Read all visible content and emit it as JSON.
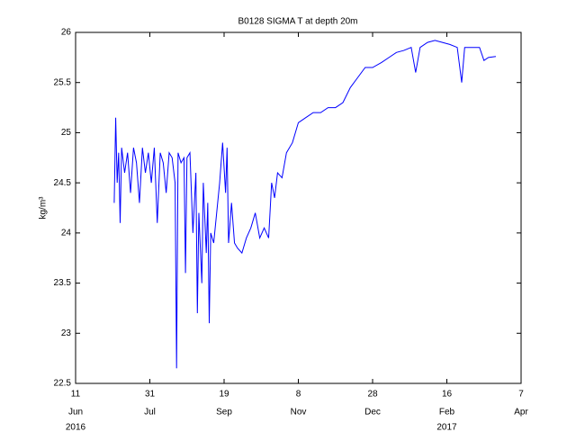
{
  "chart_data": {
    "type": "line",
    "title": "B0128 SIGMA T at depth 20m",
    "ylabel": "kg/m³",
    "xlim": [
      "2016-06-11",
      "2017-04-07"
    ],
    "xticks": [
      {
        "value": "2016-06-11",
        "label": "11"
      },
      {
        "value": "2016-07-31",
        "label": "31"
      },
      {
        "value": "2016-09-19",
        "label": "19"
      },
      {
        "value": "2016-11-08",
        "label": "8"
      },
      {
        "value": "2016-12-28",
        "label": "28"
      },
      {
        "value": "2017-02-16",
        "label": "16"
      },
      {
        "value": "2017-04-07",
        "label": "7"
      }
    ],
    "xtick_months": [
      "Jun",
      "Jul",
      "Sep",
      "Nov",
      "Dec",
      "Feb",
      "Apr"
    ],
    "xtick_years": [
      {
        "value": "2016-06-11",
        "label": "2016"
      },
      {
        "value": "2017-02-16",
        "label": "2017"
      }
    ],
    "ylim": [
      22.5,
      26
    ],
    "yticks": [
      22.5,
      23,
      23.5,
      24,
      24.5,
      25,
      25.5,
      26
    ],
    "grid": false,
    "x": [
      "2016-07-07",
      "2016-07-08",
      "2016-07-09",
      "2016-07-10",
      "2016-07-11",
      "2016-07-12",
      "2016-07-14",
      "2016-07-16",
      "2016-07-18",
      "2016-07-20",
      "2016-07-22",
      "2016-07-24",
      "2016-07-26",
      "2016-07-28",
      "2016-07-30",
      "2016-08-01",
      "2016-08-03",
      "2016-08-05",
      "2016-08-07",
      "2016-08-09",
      "2016-08-11",
      "2016-08-13",
      "2016-08-15",
      "2016-08-17",
      "2016-08-18",
      "2016-08-19",
      "2016-08-21",
      "2016-08-23",
      "2016-08-24",
      "2016-08-25",
      "2016-08-27",
      "2016-08-29",
      "2016-08-31",
      "2016-09-01",
      "2016-09-02",
      "2016-09-04",
      "2016-09-05",
      "2016-09-07",
      "2016-09-08",
      "2016-09-09",
      "2016-09-10",
      "2016-09-12",
      "2016-09-14",
      "2016-09-16",
      "2016-09-18",
      "2016-09-20",
      "2016-09-21",
      "2016-09-22",
      "2016-09-24",
      "2016-09-26",
      "2016-09-28",
      "2016-10-01",
      "2016-10-04",
      "2016-10-07",
      "2016-10-10",
      "2016-10-13",
      "2016-10-16",
      "2016-10-19",
      "2016-10-21",
      "2016-10-23",
      "2016-10-25",
      "2016-10-28",
      "2016-10-31",
      "2016-11-04",
      "2016-11-08",
      "2016-11-13",
      "2016-11-18",
      "2016-11-23",
      "2016-11-28",
      "2016-12-03",
      "2016-12-08",
      "2016-12-13",
      "2016-12-18",
      "2016-12-23",
      "2016-12-28",
      "2017-01-03",
      "2017-01-08",
      "2017-01-13",
      "2017-01-18",
      "2017-01-23",
      "2017-01-26",
      "2017-01-29",
      "2017-02-03",
      "2017-02-08",
      "2017-02-13",
      "2017-02-18",
      "2017-02-23",
      "2017-02-26",
      "2017-02-28",
      "2017-03-05",
      "2017-03-10",
      "2017-03-13",
      "2017-03-16",
      "2017-03-21"
    ],
    "series": [
      {
        "color": "#0000ff",
        "values": [
          24.3,
          25.15,
          24.5,
          24.8,
          24.1,
          24.85,
          24.6,
          24.8,
          24.4,
          24.85,
          24.7,
          24.3,
          24.85,
          24.6,
          24.8,
          24.5,
          24.85,
          24.1,
          24.8,
          24.7,
          24.4,
          24.8,
          24.75,
          24.5,
          22.65,
          24.8,
          24.7,
          24.75,
          23.6,
          24.75,
          24.8,
          24.0,
          24.6,
          23.2,
          24.2,
          23.5,
          24.5,
          23.8,
          24.3,
          23.1,
          24.0,
          23.9,
          24.2,
          24.5,
          24.9,
          24.4,
          24.85,
          23.9,
          24.3,
          23.9,
          23.85,
          23.8,
          23.95,
          24.05,
          24.2,
          23.95,
          24.05,
          23.95,
          24.5,
          24.35,
          24.6,
          24.55,
          24.8,
          24.9,
          25.1,
          25.15,
          25.2,
          25.2,
          25.25,
          25.25,
          25.3,
          25.45,
          25.55,
          25.65,
          25.65,
          25.7,
          25.75,
          25.8,
          25.82,
          25.85,
          25.6,
          25.85,
          25.9,
          25.92,
          25.9,
          25.88,
          25.85,
          25.5,
          25.85,
          25.85,
          25.85,
          25.72,
          25.75,
          25.76
        ]
      }
    ]
  }
}
